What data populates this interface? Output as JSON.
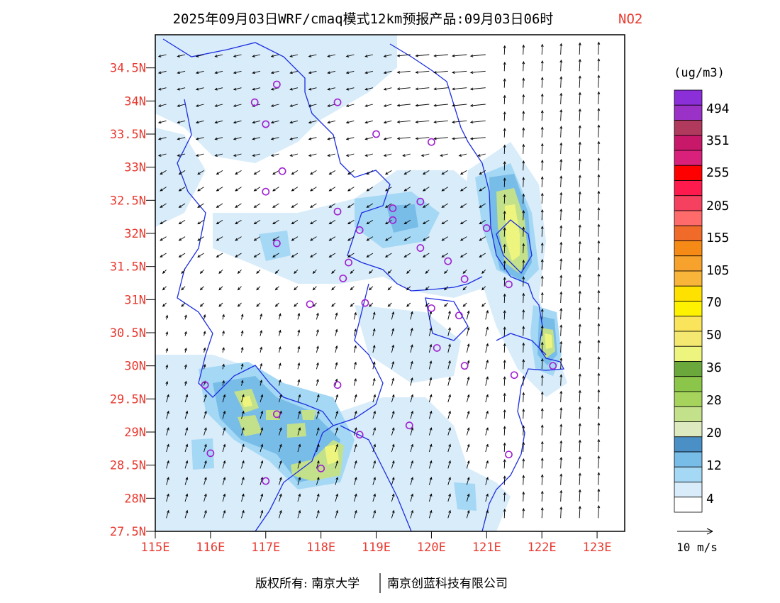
{
  "title": {
    "main": "2025年09月03日WRF/cmaq模式12km预报产品:09月03日06时",
    "pollutant": "NO2",
    "pollutant_color": "#e8392f"
  },
  "axes": {
    "lat_labels": [
      "34.5N",
      "34N",
      "33.5N",
      "33N",
      "32.5N",
      "32N",
      "31.5N",
      "31N",
      "30.5N",
      "30N",
      "29.5N",
      "29N",
      "28.5N",
      "28N",
      "27.5N"
    ],
    "lon_labels": [
      "115E",
      "116E",
      "117E",
      "118E",
      "119E",
      "120E",
      "121E",
      "122E",
      "123E"
    ],
    "label_color": "#e8392f",
    "lat_range": [
      27.5,
      35.0
    ],
    "lon_range": [
      115.0,
      123.5
    ]
  },
  "legend": {
    "unit": "(ug/m3)",
    "colors": [
      "#ffffff",
      "#d8ecfa",
      "#a5d8f5",
      "#78bce8",
      "#4a8fc6",
      "#dde9be",
      "#c3e08b",
      "#a6d35c",
      "#8bc64a",
      "#6aa83c",
      "#eef57e",
      "#f5e870",
      "#fae45c",
      "#fff200",
      "#ffe100",
      "#f9b43a",
      "#f7a22c",
      "#f68a16",
      "#f06a2a",
      "#ff6a6a",
      "#f5415f",
      "#ff1a4e",
      "#ff0000",
      "#d9207a",
      "#c8186a",
      "#b03a5e",
      "#9b32c8",
      "#8b2fd8"
    ],
    "labels": [
      "4",
      "12",
      "20",
      "28",
      "36",
      "50",
      "70",
      "105",
      "155",
      "205",
      "255",
      "351",
      "494"
    ],
    "wind_ref": "10 m/s"
  },
  "footer": {
    "copyright": "版权所有: 南京大学",
    "company": "南京创蓝科技有限公司"
  },
  "map": {
    "boundary_color": "#1c2ee0",
    "station_color": "#a020d0",
    "stations": [
      [
        117.2,
        34.25
      ],
      [
        116.8,
        33.98
      ],
      [
        118.3,
        33.98
      ],
      [
        117.0,
        33.65
      ],
      [
        119.0,
        33.5
      ],
      [
        120.0,
        33.38
      ],
      [
        117.3,
        32.94
      ],
      [
        117.0,
        32.63
      ],
      [
        118.3,
        32.33
      ],
      [
        119.3,
        32.38
      ],
      [
        119.3,
        32.2
      ],
      [
        119.8,
        32.48
      ],
      [
        118.7,
        32.05
      ],
      [
        117.2,
        31.85
      ],
      [
        119.8,
        31.78
      ],
      [
        120.3,
        31.58
      ],
      [
        118.5,
        31.56
      ],
      [
        118.4,
        31.32
      ],
      [
        120.6,
        31.31
      ],
      [
        121.0,
        32.08
      ],
      [
        121.4,
        31.23
      ],
      [
        117.8,
        30.93
      ],
      [
        118.8,
        30.95
      ],
      [
        120.0,
        30.87
      ],
      [
        120.5,
        30.76
      ],
      [
        120.1,
        30.27
      ],
      [
        120.6,
        30.0
      ],
      [
        121.5,
        29.86
      ],
      [
        122.2,
        30.0
      ],
      [
        115.9,
        29.71
      ],
      [
        118.3,
        29.71
      ],
      [
        117.2,
        29.27
      ],
      [
        118.7,
        28.96
      ],
      [
        119.6,
        29.1
      ],
      [
        116.0,
        28.68
      ],
      [
        121.4,
        28.66
      ],
      [
        118.0,
        28.45
      ],
      [
        117.0,
        28.26
      ]
    ]
  }
}
